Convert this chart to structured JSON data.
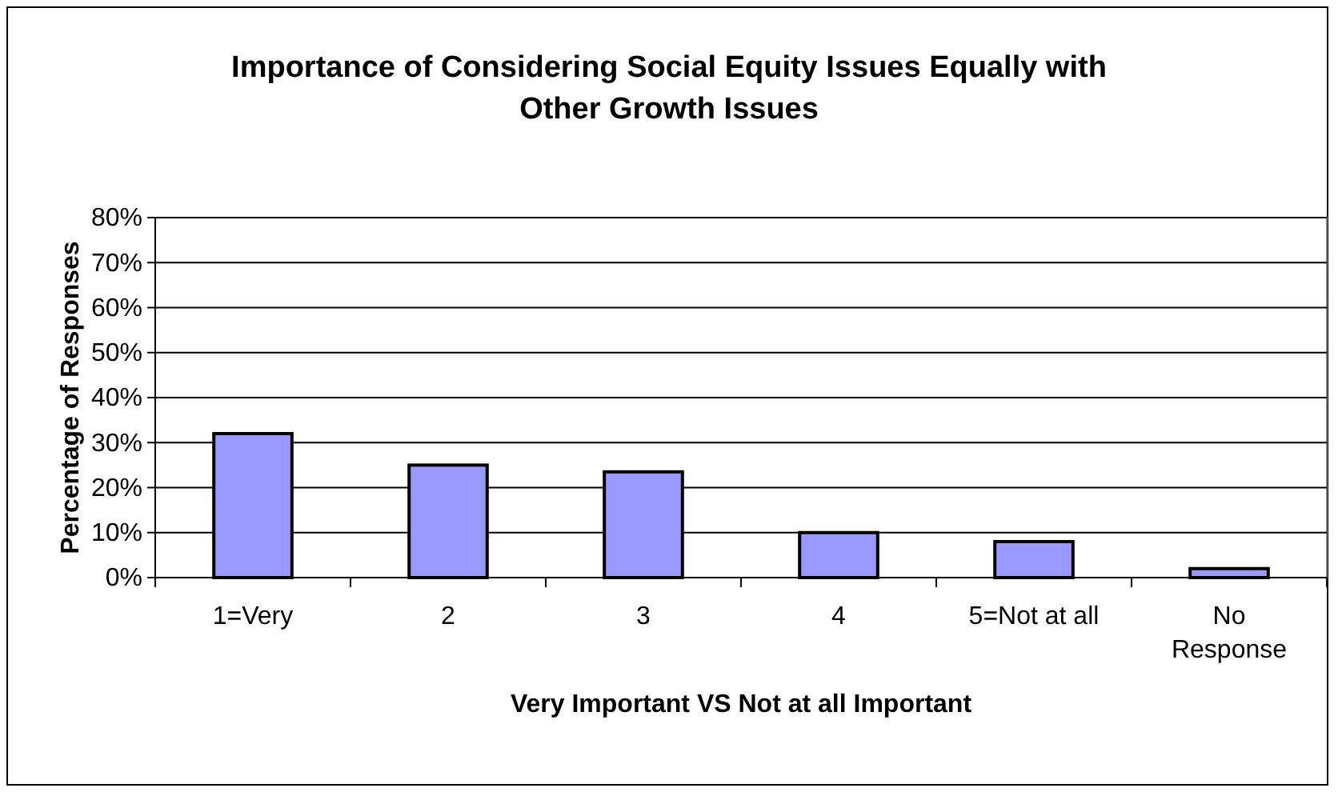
{
  "chart_data": {
    "type": "bar",
    "title": "Importance of Considering Social Equity Issues Equally with Other Growth Issues",
    "xlabel": "Very Important VS Not at all Important",
    "ylabel": "Percentage of Responses",
    "categories": [
      "1=Very",
      "2",
      "3",
      "4",
      "5=Not at all",
      "No Response"
    ],
    "values": [
      32,
      25,
      23.5,
      10,
      8,
      2
    ],
    "color": "#9999ff",
    "ylim": [
      0,
      80
    ],
    "yticks": [
      {
        "value": 0,
        "label": "0%"
      },
      {
        "value": 10,
        "label": "10%"
      },
      {
        "value": 20,
        "label": "20%"
      },
      {
        "value": 30,
        "label": "30%"
      },
      {
        "value": 40,
        "label": "40%"
      },
      {
        "value": 50,
        "label": "50%"
      },
      {
        "value": 60,
        "label": "60%"
      },
      {
        "value": 70,
        "label": "70%"
      },
      {
        "value": 80,
        "label": "80%"
      }
    ],
    "grid": "y"
  }
}
